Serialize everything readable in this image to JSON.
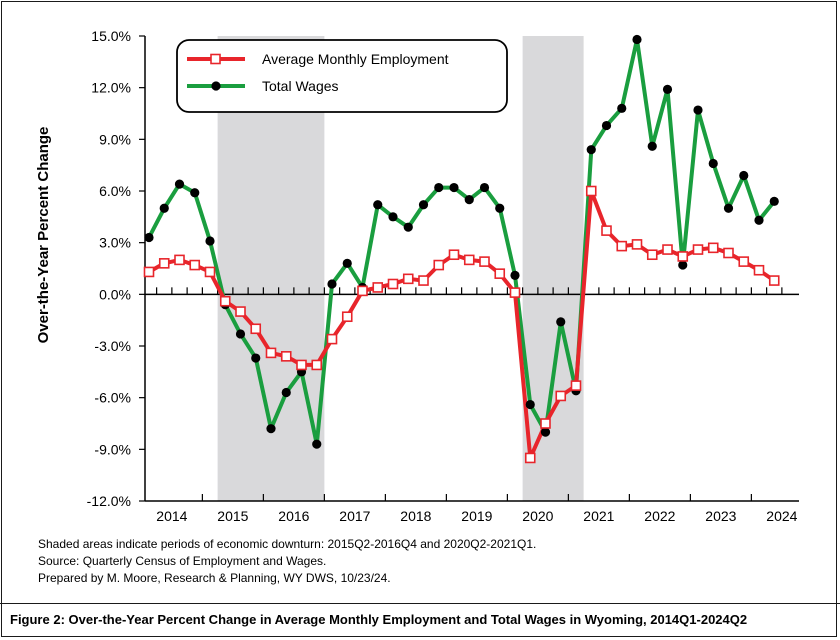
{
  "chart_data": {
    "type": "line",
    "ylabel": "Over-the-Year Percent Change",
    "y_ticks": [
      "15.0%",
      "12.0%",
      "9.0%",
      "6.0%",
      "3.0%",
      "0.0%",
      "-3.0%",
      "-6.0%",
      "-9.0%",
      "-12.0%"
    ],
    "y_tick_values": [
      15,
      12,
      9,
      6,
      3,
      0,
      -3,
      -6,
      -9,
      -12
    ],
    "ylim": [
      -12,
      15
    ],
    "x_year_labels": [
      "2014",
      "2015",
      "2016",
      "2017",
      "2018",
      "2019",
      "2020",
      "2021",
      "2022",
      "2023",
      "2024"
    ],
    "quarters": [
      "2014Q1",
      "2014Q2",
      "2014Q3",
      "2014Q4",
      "2015Q1",
      "2015Q2",
      "2015Q3",
      "2015Q4",
      "2016Q1",
      "2016Q2",
      "2016Q3",
      "2016Q4",
      "2017Q1",
      "2017Q2",
      "2017Q3",
      "2017Q4",
      "2018Q1",
      "2018Q2",
      "2018Q3",
      "2018Q4",
      "2019Q1",
      "2019Q2",
      "2019Q3",
      "2019Q4",
      "2020Q1",
      "2020Q2",
      "2020Q3",
      "2020Q4",
      "2021Q1",
      "2021Q2",
      "2021Q3",
      "2021Q4",
      "2022Q1",
      "2022Q2",
      "2022Q3",
      "2022Q4",
      "2023Q1",
      "2023Q2",
      "2023Q3",
      "2023Q4",
      "2024Q1",
      "2024Q2"
    ],
    "shaded_periods": [
      {
        "start": "2015Q2",
        "end": "2016Q4"
      },
      {
        "start": "2020Q2",
        "end": "2021Q1"
      }
    ],
    "series": [
      {
        "name": "Average Monthly Employment",
        "color": "#e8252b",
        "marker": "open-square",
        "values": [
          1.3,
          1.8,
          2.0,
          1.7,
          1.3,
          -0.4,
          -1.0,
          -2.0,
          -3.4,
          -3.6,
          -4.1,
          -4.1,
          -2.6,
          -1.3,
          0.2,
          0.4,
          0.6,
          0.9,
          0.8,
          1.7,
          2.3,
          2.0,
          1.9,
          1.2,
          0.1,
          -9.5,
          -7.5,
          -5.9,
          -5.3,
          6.0,
          3.7,
          2.8,
          2.9,
          2.3,
          2.6,
          2.2,
          2.6,
          2.7,
          2.4,
          1.9,
          1.4,
          0.8
        ]
      },
      {
        "name": "Total Wages",
        "color": "#1a9e3f",
        "marker": "filled-circle",
        "values": [
          3.3,
          5.0,
          6.4,
          5.9,
          3.1,
          -0.6,
          -2.3,
          -3.7,
          -7.8,
          -5.7,
          -4.5,
          -8.7,
          0.6,
          1.8,
          0.4,
          5.2,
          4.5,
          3.9,
          5.2,
          6.2,
          6.2,
          5.5,
          6.2,
          5.0,
          1.1,
          -6.4,
          -8.0,
          -1.6,
          -5.6,
          8.4,
          9.8,
          10.8,
          14.8,
          8.6,
          11.9,
          1.7,
          10.7,
          7.6,
          5.0,
          6.9,
          4.3,
          5.4
        ]
      }
    ],
    "legend_position": "top-left",
    "grid": false
  },
  "notes": {
    "shaded": "Shaded areas indicate periods of economic downturn: 2015Q2-2016Q4 and 2020Q2-2021Q1.",
    "source": "Source: Quarterly Census of Employment and Wages.",
    "prepared": "Prepared by M. Moore, Research & Planning, WY DWS, 10/23/24."
  },
  "caption": "Figure 2: Over-the-Year Percent Change in Average Monthly Employment and Total Wages in Wyoming, 2014Q1-2024Q2"
}
